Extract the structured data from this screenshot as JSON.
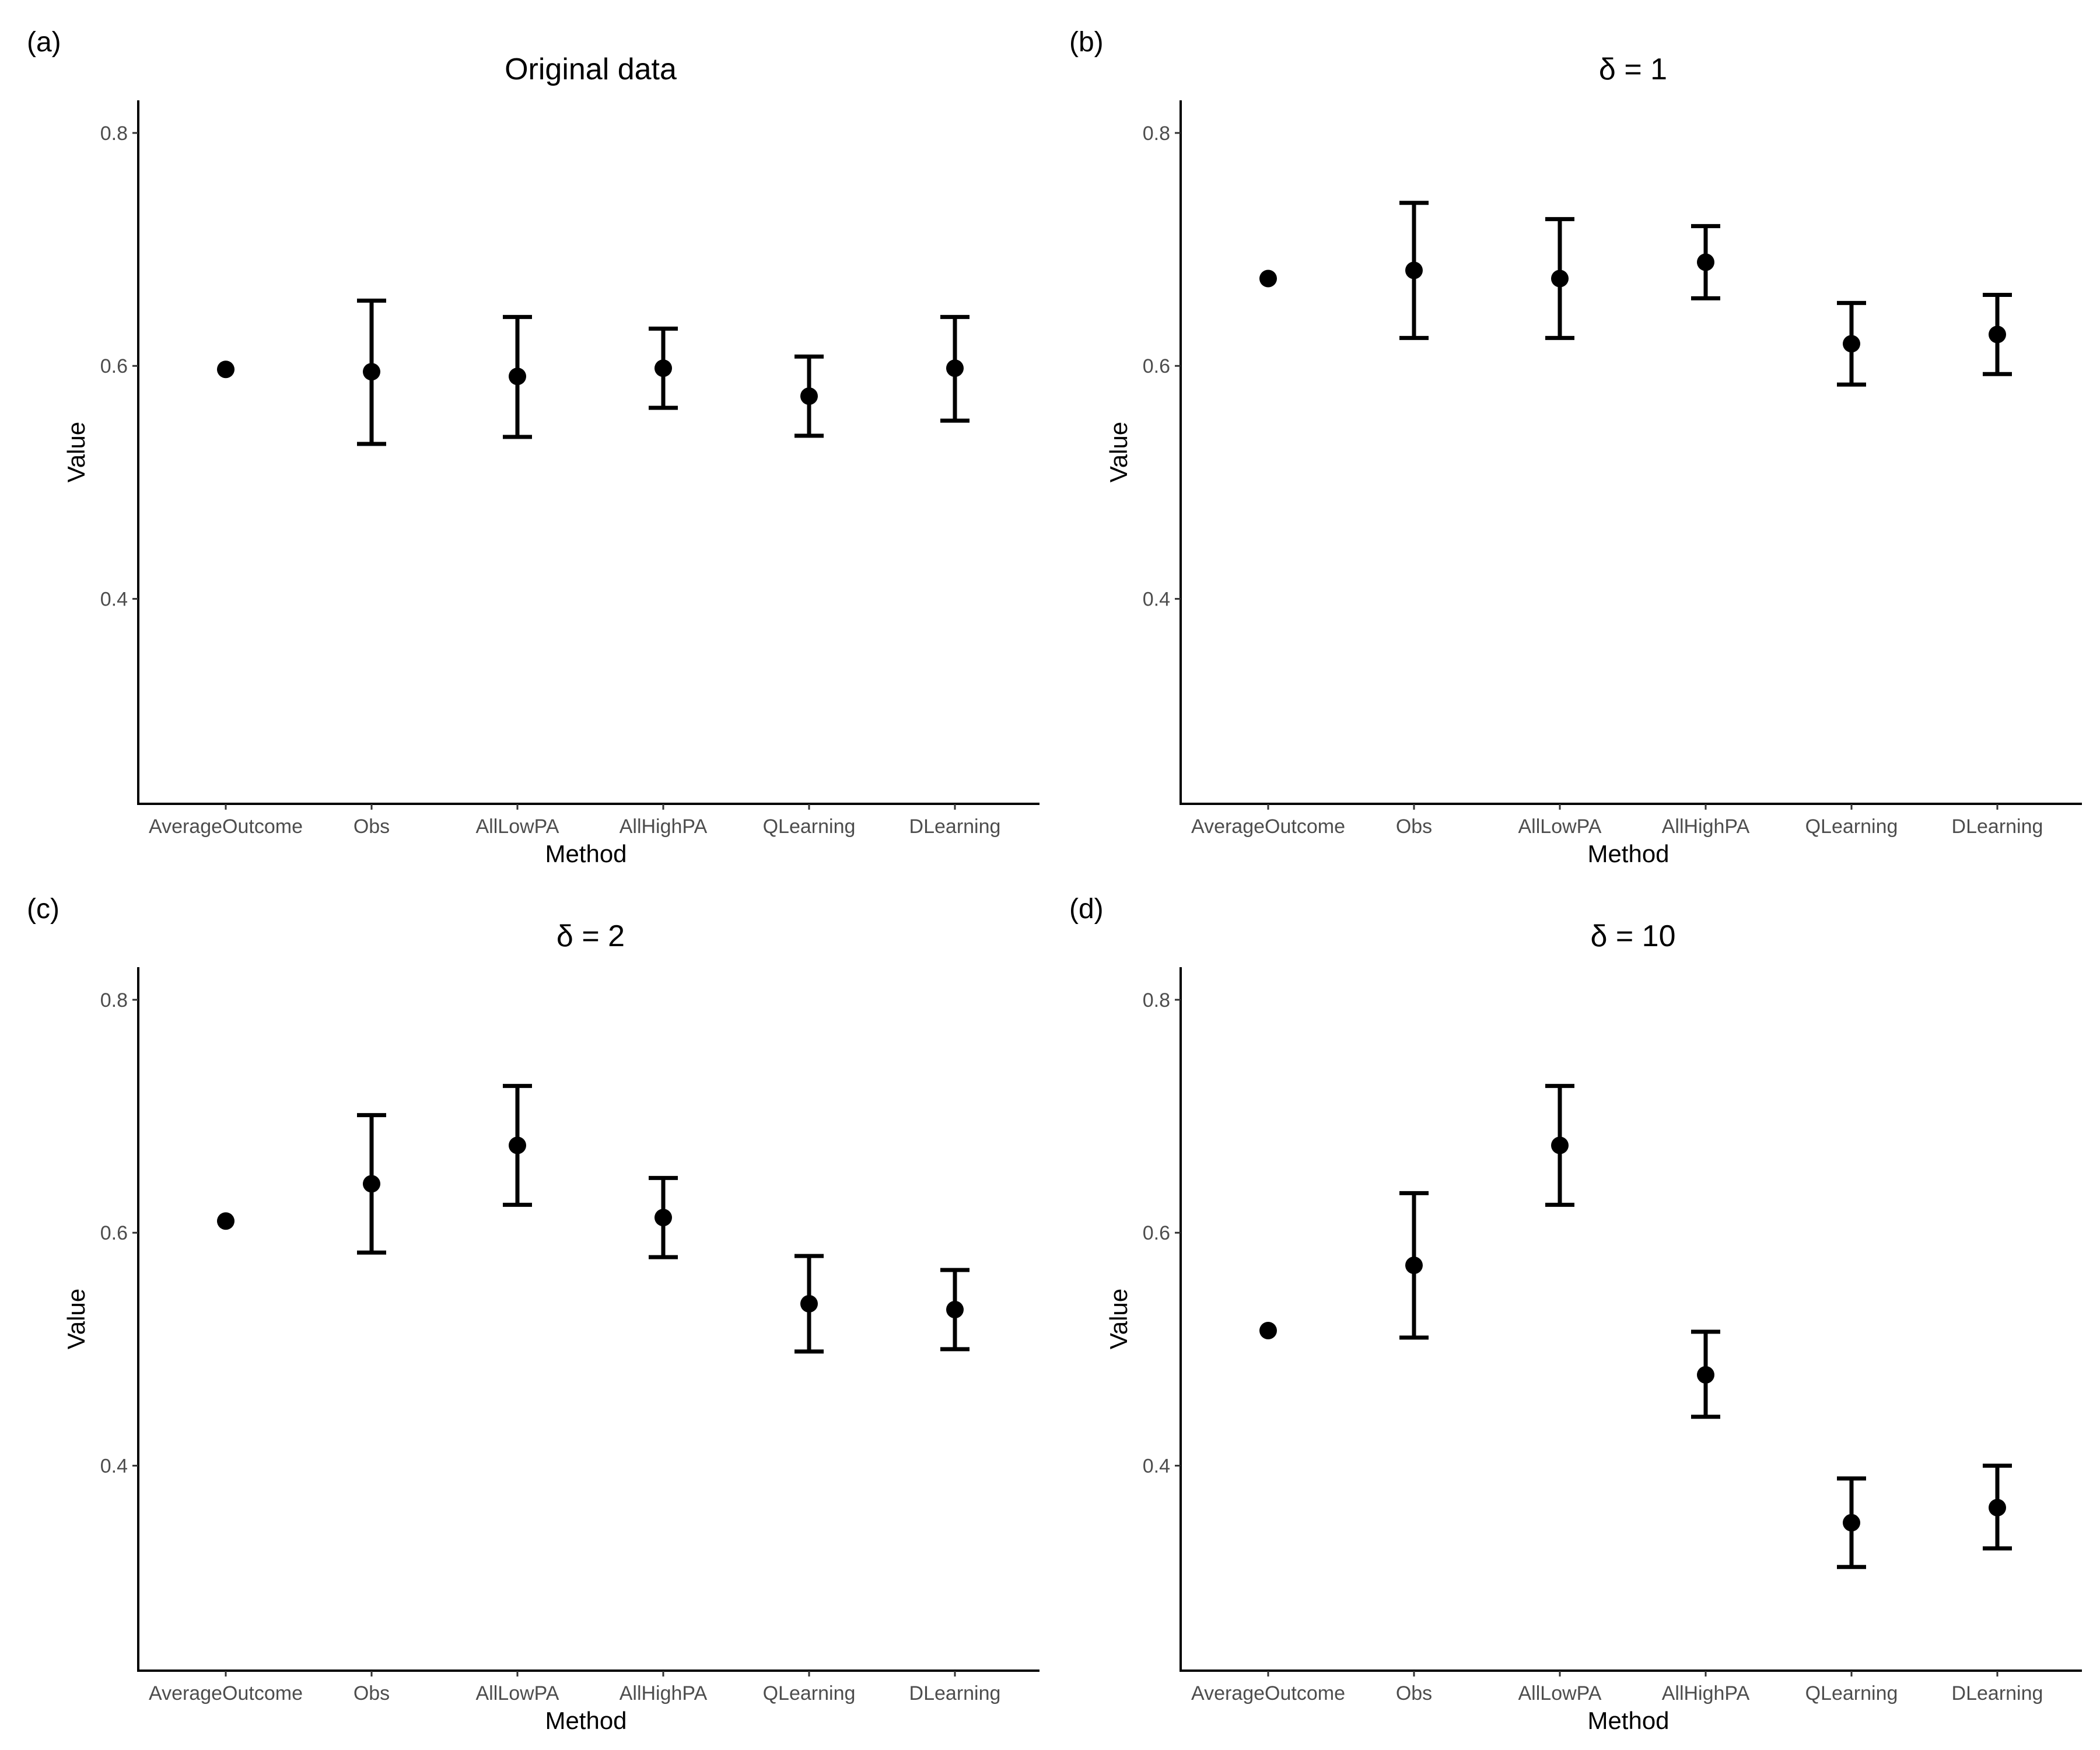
{
  "chart_data": [
    {
      "type": "scatter",
      "panel_tag": "(a)",
      "title": "Original data",
      "xlabel": "Method",
      "ylabel": "Value",
      "categories": [
        "AverageOutcome",
        "Obs",
        "AllLowPA",
        "AllHighPA",
        "QLearning",
        "DLearning"
      ],
      "y_ticks": [
        "0.4",
        "0.6",
        "0.8"
      ],
      "ylim": [
        0.224,
        0.828
      ],
      "points": [
        {
          "category": "AverageOutcome",
          "value": 0.597
        },
        {
          "category": "Obs",
          "value": 0.595,
          "lower": 0.533,
          "upper": 0.656
        },
        {
          "category": "AllLowPA",
          "value": 0.591,
          "lower": 0.539,
          "upper": 0.642
        },
        {
          "category": "AllHighPA",
          "value": 0.598,
          "lower": 0.564,
          "upper": 0.632
        },
        {
          "category": "QLearning",
          "value": 0.574,
          "lower": 0.54,
          "upper": 0.608
        },
        {
          "category": "DLearning",
          "value": 0.598,
          "lower": 0.553,
          "upper": 0.642
        }
      ],
      "grid": false
    },
    {
      "type": "scatter",
      "panel_tag": "(b)",
      "title": "δ = 1",
      "xlabel": "Method",
      "ylabel": "Value",
      "categories": [
        "AverageOutcome",
        "Obs",
        "AllLowPA",
        "AllHighPA",
        "QLearning",
        "DLearning"
      ],
      "y_ticks": [
        "0.4",
        "0.6",
        "0.8"
      ],
      "ylim": [
        0.224,
        0.828
      ],
      "points": [
        {
          "category": "AverageOutcome",
          "value": 0.675
        },
        {
          "category": "Obs",
          "value": 0.682,
          "lower": 0.624,
          "upper": 0.74
        },
        {
          "category": "AllLowPA",
          "value": 0.675,
          "lower": 0.624,
          "upper": 0.726
        },
        {
          "category": "AllHighPA",
          "value": 0.689,
          "lower": 0.658,
          "upper": 0.72
        },
        {
          "category": "QLearning",
          "value": 0.619,
          "lower": 0.584,
          "upper": 0.654
        },
        {
          "category": "DLearning",
          "value": 0.627,
          "lower": 0.593,
          "upper": 0.661
        }
      ],
      "grid": false
    },
    {
      "type": "scatter",
      "panel_tag": "(c)",
      "title": "δ = 2",
      "xlabel": "Method",
      "ylabel": "Value",
      "categories": [
        "AverageOutcome",
        "Obs",
        "AllLowPA",
        "AllHighPA",
        "QLearning",
        "DLearning"
      ],
      "y_ticks": [
        "0.4",
        "0.6",
        "0.8"
      ],
      "ylim": [
        0.224,
        0.828
      ],
      "points": [
        {
          "category": "AverageOutcome",
          "value": 0.61
        },
        {
          "category": "Obs",
          "value": 0.642,
          "lower": 0.583,
          "upper": 0.701
        },
        {
          "category": "AllLowPA",
          "value": 0.675,
          "lower": 0.624,
          "upper": 0.726
        },
        {
          "category": "AllHighPA",
          "value": 0.613,
          "lower": 0.579,
          "upper": 0.647
        },
        {
          "category": "QLearning",
          "value": 0.539,
          "lower": 0.498,
          "upper": 0.58
        },
        {
          "category": "DLearning",
          "value": 0.534,
          "lower": 0.5,
          "upper": 0.568
        }
      ],
      "grid": false
    },
    {
      "type": "scatter",
      "panel_tag": "(d)",
      "title": "δ = 10",
      "xlabel": "Method",
      "ylabel": "Value",
      "categories": [
        "AverageOutcome",
        "Obs",
        "AllLowPA",
        "AllHighPA",
        "QLearning",
        "DLearning"
      ],
      "y_ticks": [
        "0.4",
        "0.6",
        "0.8"
      ],
      "ylim": [
        0.224,
        0.828
      ],
      "points": [
        {
          "category": "AverageOutcome",
          "value": 0.516
        },
        {
          "category": "Obs",
          "value": 0.572,
          "lower": 0.51,
          "upper": 0.634
        },
        {
          "category": "AllLowPA",
          "value": 0.675,
          "lower": 0.624,
          "upper": 0.726
        },
        {
          "category": "AllHighPA",
          "value": 0.478,
          "lower": 0.442,
          "upper": 0.515
        },
        {
          "category": "QLearning",
          "value": 0.351,
          "lower": 0.313,
          "upper": 0.389
        },
        {
          "category": "DLearning",
          "value": 0.364,
          "lower": 0.329,
          "upper": 0.4
        }
      ],
      "grid": false
    }
  ]
}
